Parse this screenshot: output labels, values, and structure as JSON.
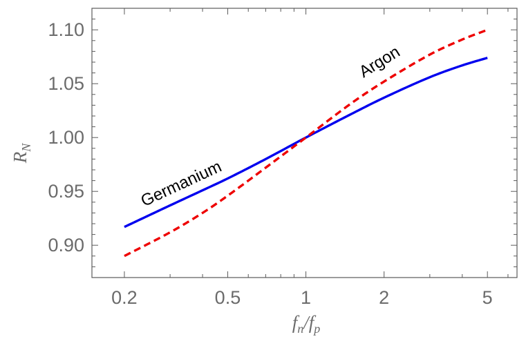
{
  "chart_data": {
    "type": "line",
    "xscale": "log",
    "xlim": [
      0.15,
      6.5
    ],
    "ylim": [
      0.87,
      1.12
    ],
    "x_ticks": [
      0.2,
      0.5,
      1,
      2,
      5
    ],
    "x_tick_labels": [
      "0.2",
      "0.5",
      "1",
      "2",
      "5"
    ],
    "y_ticks": [
      0.9,
      0.95,
      1.0,
      1.05,
      1.1
    ],
    "y_tick_labels": [
      "0.90",
      "0.95",
      "1.00",
      "1.05",
      "1.10"
    ],
    "xlabel": {
      "main": "f",
      "sub1": "n",
      "sep": "/",
      "main2": "f",
      "sub2": "p"
    },
    "ylabel": {
      "main": "R",
      "sub": "N"
    },
    "grid": false,
    "series": [
      {
        "name": "Germanium",
        "color": "#0000ee",
        "style": "solid",
        "x": [
          0.2,
          0.3,
          0.4,
          0.5,
          0.7,
          1,
          1.5,
          2,
          3,
          4,
          5
        ],
        "y": [
          0.917,
          0.937,
          0.951,
          0.962,
          0.98,
          1.0,
          1.022,
          1.037,
          1.056,
          1.067,
          1.074
        ]
      },
      {
        "name": "Argon",
        "color": "#ee0000",
        "style": "dashed",
        "x": [
          0.2,
          0.3,
          0.4,
          0.5,
          0.7,
          1,
          1.5,
          2,
          3,
          4,
          5
        ],
        "y": [
          0.89,
          0.912,
          0.93,
          0.946,
          0.972,
          1.0,
          1.032,
          1.052,
          1.077,
          1.091,
          1.1
        ]
      }
    ],
    "annotations": [
      {
        "text": "Germanium",
        "series": "Germanium"
      },
      {
        "text": "Argon",
        "series": "Argon"
      }
    ]
  }
}
